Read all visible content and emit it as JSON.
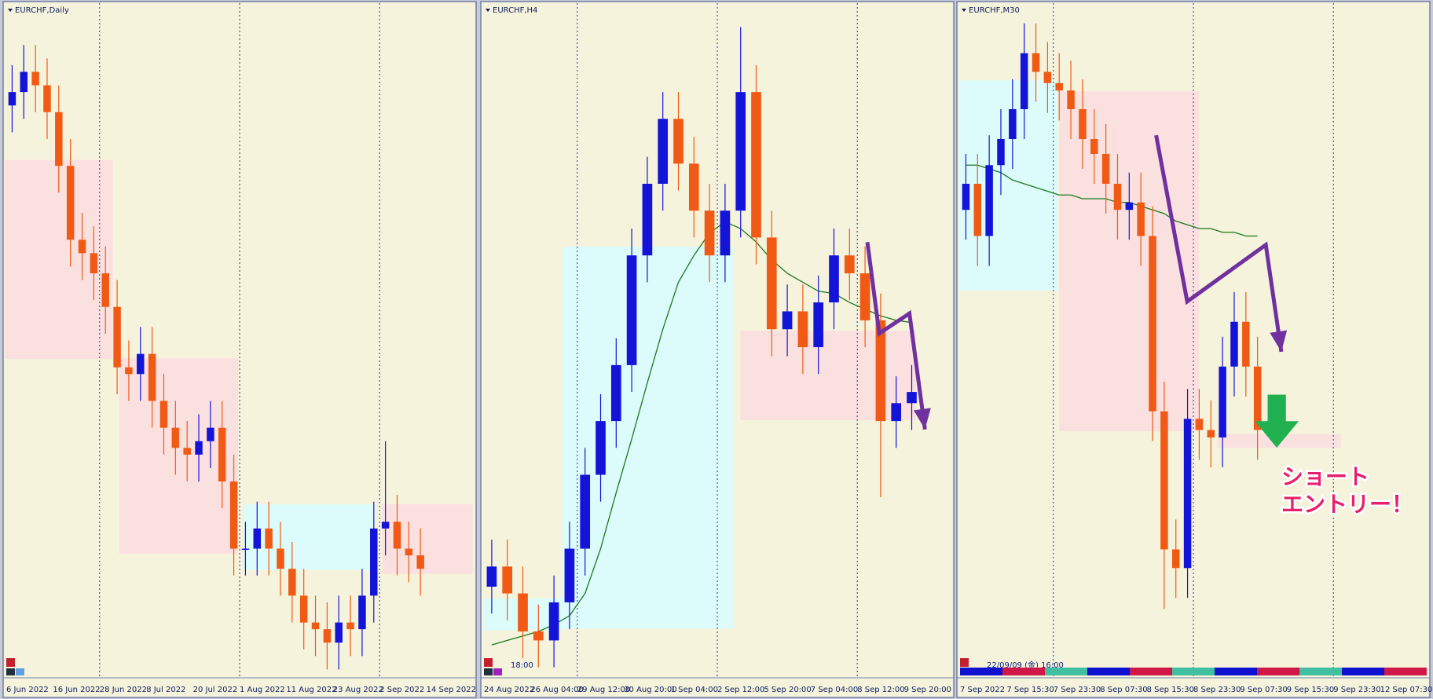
{
  "chart_data": [
    {
      "type": "candlestick",
      "title": "EURCHF,Daily",
      "ylim": [
        0.945,
        1.045
      ],
      "up_color": "#1414d8",
      "down_color": "#f05a14",
      "categories": [
        "6 Jun 2022",
        null,
        null,
        null,
        "16 Jun 2022",
        null,
        null,
        null,
        "28 Jun 2022",
        null,
        null,
        null,
        "8 Jul 2022",
        null,
        null,
        null,
        "20 Jul 2022",
        null,
        null,
        null,
        "1 Aug 2022",
        null,
        null,
        null,
        "11 Aug 2022",
        null,
        null,
        null,
        "23 Aug 2022",
        null,
        null,
        null,
        "2 Sep 2022",
        null,
        null,
        null,
        "14 Sep 2022",
        null,
        null,
        null
      ],
      "ohlc": [
        [
          1.03,
          1.036,
          1.026,
          1.032
        ],
        [
          1.032,
          1.039,
          1.028,
          1.035
        ],
        [
          1.035,
          1.039,
          1.029,
          1.033
        ],
        [
          1.033,
          1.037,
          1.025,
          1.029
        ],
        [
          1.029,
          1.033,
          1.017,
          1.021
        ],
        [
          1.021,
          1.025,
          1.006,
          1.01
        ],
        [
          1.01,
          1.014,
          1.004,
          1.008
        ],
        [
          1.008,
          1.012,
          1.001,
          1.005
        ],
        [
          1.005,
          1.009,
          0.996,
          1.0
        ],
        [
          1.0,
          1.004,
          0.987,
          0.991
        ],
        [
          0.991,
          0.995,
          0.986,
          0.99
        ],
        [
          0.99,
          0.997,
          0.986,
          0.993
        ],
        [
          0.993,
          0.997,
          0.982,
          0.986
        ],
        [
          0.986,
          0.99,
          0.978,
          0.982
        ],
        [
          0.982,
          0.986,
          0.975,
          0.979
        ],
        [
          0.979,
          0.983,
          0.974,
          0.978
        ],
        [
          0.978,
          0.984,
          0.974,
          0.98
        ],
        [
          0.98,
          0.986,
          0.976,
          0.982
        ],
        [
          0.982,
          0.986,
          0.97,
          0.974
        ],
        [
          0.974,
          0.978,
          0.96,
          0.964
        ],
        [
          0.964,
          0.968,
          0.96,
          0.964
        ],
        [
          0.964,
          0.971,
          0.96,
          0.967
        ],
        [
          0.967,
          0.971,
          0.96,
          0.964
        ],
        [
          0.964,
          0.968,
          0.957,
          0.961
        ],
        [
          0.961,
          0.965,
          0.953,
          0.957
        ],
        [
          0.957,
          0.961,
          0.949,
          0.953
        ],
        [
          0.953,
          0.957,
          0.948,
          0.952
        ],
        [
          0.952,
          0.956,
          0.946,
          0.95
        ],
        [
          0.95,
          0.957,
          0.946,
          0.953
        ],
        [
          0.953,
          0.957,
          0.948,
          0.952
        ],
        [
          0.952,
          0.961,
          0.948,
          0.957
        ],
        [
          0.957,
          0.971,
          0.953,
          0.967
        ],
        [
          0.967,
          0.98,
          0.963,
          0.968
        ],
        [
          0.968,
          0.972,
          0.96,
          0.964
        ],
        [
          0.964,
          0.968,
          0.959,
          0.963
        ],
        [
          0.963,
          0.967,
          0.957,
          0.961
        ],
        null,
        null,
        null,
        null
      ]
    },
    {
      "type": "candlestick",
      "title": "EURCHF,H4",
      "time_label": "18:00",
      "ylim": [
        0.955,
        0.985
      ],
      "up_color": "#1414d8",
      "down_color": "#f05a14",
      "categories": [
        "24 Aug 2022",
        null,
        null,
        "26 Aug 04:00",
        null,
        null,
        "29 Aug 12:00",
        null,
        null,
        "30 Aug 20:00",
        null,
        null,
        "1 Sep 04:00",
        null,
        null,
        "2 Sep 12:00",
        null,
        null,
        "5 Sep 20:00",
        null,
        null,
        "7 Sep 04:00",
        null,
        null,
        "8 Sep 12:00",
        null,
        null,
        "9 Sep 20:00",
        null,
        null
      ],
      "ohlc": [
        [
          0.959,
          0.9611,
          0.9578,
          0.9599
        ],
        [
          0.9599,
          0.9611,
          0.9575,
          0.9587
        ],
        [
          0.9587,
          0.9599,
          0.9558,
          0.957
        ],
        [
          0.957,
          0.9582,
          0.9554,
          0.9566
        ],
        [
          0.9566,
          0.9595,
          0.9554,
          0.9583
        ],
        [
          0.9583,
          0.9619,
          0.9571,
          0.9607
        ],
        [
          0.9607,
          0.9652,
          0.9595,
          0.964
        ],
        [
          0.964,
          0.9676,
          0.9628,
          0.9664
        ],
        [
          0.9664,
          0.9701,
          0.9652,
          0.9689
        ],
        [
          0.9689,
          0.975,
          0.9677,
          0.9738
        ],
        [
          0.9738,
          0.9782,
          0.9726,
          0.977
        ],
        [
          0.977,
          0.9811,
          0.9758,
          0.9799
        ],
        [
          0.9799,
          0.9811,
          0.9767,
          0.9779
        ],
        [
          0.9779,
          0.9791,
          0.9746,
          0.9758
        ],
        [
          0.9758,
          0.977,
          0.9726,
          0.9738
        ],
        [
          0.9738,
          0.977,
          0.9726,
          0.9758
        ],
        [
          0.9758,
          0.984,
          0.9746,
          0.9811
        ],
        [
          0.9811,
          0.9823,
          0.9734,
          0.9746
        ],
        [
          0.9746,
          0.9758,
          0.9693,
          0.9705
        ],
        [
          0.9705,
          0.9725,
          0.9693,
          0.9713
        ],
        [
          0.9713,
          0.9725,
          0.9685,
          0.9697
        ],
        [
          0.9697,
          0.9729,
          0.9685,
          0.9717
        ],
        [
          0.9717,
          0.975,
          0.9705,
          0.9738
        ],
        [
          0.9738,
          0.975,
          0.9718,
          0.973
        ],
        [
          0.973,
          0.9742,
          0.9697,
          0.9709
        ],
        [
          0.9709,
          0.9721,
          0.963,
          0.9664
        ],
        [
          0.9664,
          0.9684,
          0.9652,
          0.9672
        ],
        [
          0.9672,
          0.9689,
          0.966,
          0.9677
        ],
        null,
        null
      ],
      "ma": {
        "color": "#1a7a1a",
        "values": [
          0.9564,
          0.9566,
          0.9568,
          0.957,
          0.9573,
          0.9577,
          0.9587,
          0.9607,
          0.9632,
          0.9656,
          0.9681,
          0.9705,
          0.9726,
          0.9738,
          0.9748,
          0.9753,
          0.975,
          0.9744,
          0.9736,
          0.973,
          0.9726,
          0.9722,
          0.9721,
          0.9717,
          0.9714,
          0.9711,
          0.9709,
          0.9708,
          null,
          null
        ]
      }
    },
    {
      "type": "candlestick",
      "title": "EURCHF,M30",
      "time_label": "22/09/09 (金) 16:00",
      "annotation": [
        "ショート",
        "エントリー！"
      ],
      "ylim": [
        0.972,
        0.99
      ],
      "up_color": "#1414d8",
      "down_color": "#f05a14",
      "categories": [
        "7 Sep 2022",
        null,
        null,
        null,
        "7 Sep 15:30",
        null,
        null,
        null,
        "7 Sep 23:30",
        null,
        null,
        null,
        "8 Sep 07:30",
        null,
        null,
        null,
        "8 Sep 15:30",
        null,
        null,
        null,
        "8 Sep 23:30",
        null,
        null,
        null,
        "9 Sep 07:30",
        null,
        null,
        null,
        "9 Sep 15:30",
        null,
        null,
        null,
        "9 Sep 23:30",
        null,
        null,
        null,
        "12 Sep 07:30",
        null,
        null,
        null
      ],
      "ohlc": [
        [
          0.9845,
          0.986,
          0.9837,
          0.9852
        ],
        [
          0.9852,
          0.986,
          0.983,
          0.9838
        ],
        [
          0.9838,
          0.9865,
          0.983,
          0.9857
        ],
        [
          0.9857,
          0.9872,
          0.9849,
          0.9864
        ],
        [
          0.9864,
          0.988,
          0.9856,
          0.9872
        ],
        [
          0.9872,
          0.9895,
          0.9864,
          0.9887
        ],
        [
          0.9887,
          0.9895,
          0.9874,
          0.9882
        ],
        [
          0.9882,
          0.989,
          0.9871,
          0.9879
        ],
        [
          0.9879,
          0.9887,
          0.9869,
          0.9877
        ],
        [
          0.9877,
          0.9885,
          0.9864,
          0.9872
        ],
        [
          0.9872,
          0.988,
          0.9856,
          0.9864
        ],
        [
          0.9864,
          0.9872,
          0.9852,
          0.986
        ],
        [
          0.986,
          0.9868,
          0.9844,
          0.9852
        ],
        [
          0.9852,
          0.986,
          0.9837,
          0.9845
        ],
        [
          0.9845,
          0.9855,
          0.9837,
          0.9847
        ],
        [
          0.9847,
          0.9855,
          0.983,
          0.9838
        ],
        [
          0.9838,
          0.9846,
          0.9783,
          0.9791
        ],
        [
          0.9791,
          0.9799,
          0.9738,
          0.9754
        ],
        [
          0.9754,
          0.9762,
          0.9741,
          0.9749
        ],
        [
          0.9749,
          0.9797,
          0.9741,
          0.9789
        ],
        [
          0.9789,
          0.9797,
          0.9778,
          0.9786
        ],
        [
          0.9786,
          0.9794,
          0.9776,
          0.9784
        ],
        [
          0.9784,
          0.9811,
          0.9776,
          0.9803
        ],
        [
          0.9803,
          0.9823,
          0.9795,
          0.9815
        ],
        [
          0.9815,
          0.9823,
          0.9795,
          0.9803
        ],
        [
          0.9803,
          0.9811,
          0.9778,
          0.9786
        ],
        null,
        null,
        null,
        null,
        null,
        null,
        null,
        null,
        null,
        null,
        null,
        null,
        null,
        null
      ],
      "ma": {
        "color": "#1a7a1a",
        "values": [
          0.9857,
          0.9857,
          0.9856,
          0.9855,
          0.9853,
          0.9852,
          0.9851,
          0.985,
          0.9849,
          0.9849,
          0.9848,
          0.9848,
          0.9848,
          0.9847,
          0.9847,
          0.9846,
          0.9845,
          0.9844,
          0.9842,
          0.9841,
          0.984,
          0.984,
          0.9839,
          0.9839,
          0.9838,
          0.9838,
          null,
          null,
          null,
          null,
          null,
          null,
          null,
          null,
          null,
          null,
          null,
          null,
          null,
          null
        ]
      }
    }
  ]
}
